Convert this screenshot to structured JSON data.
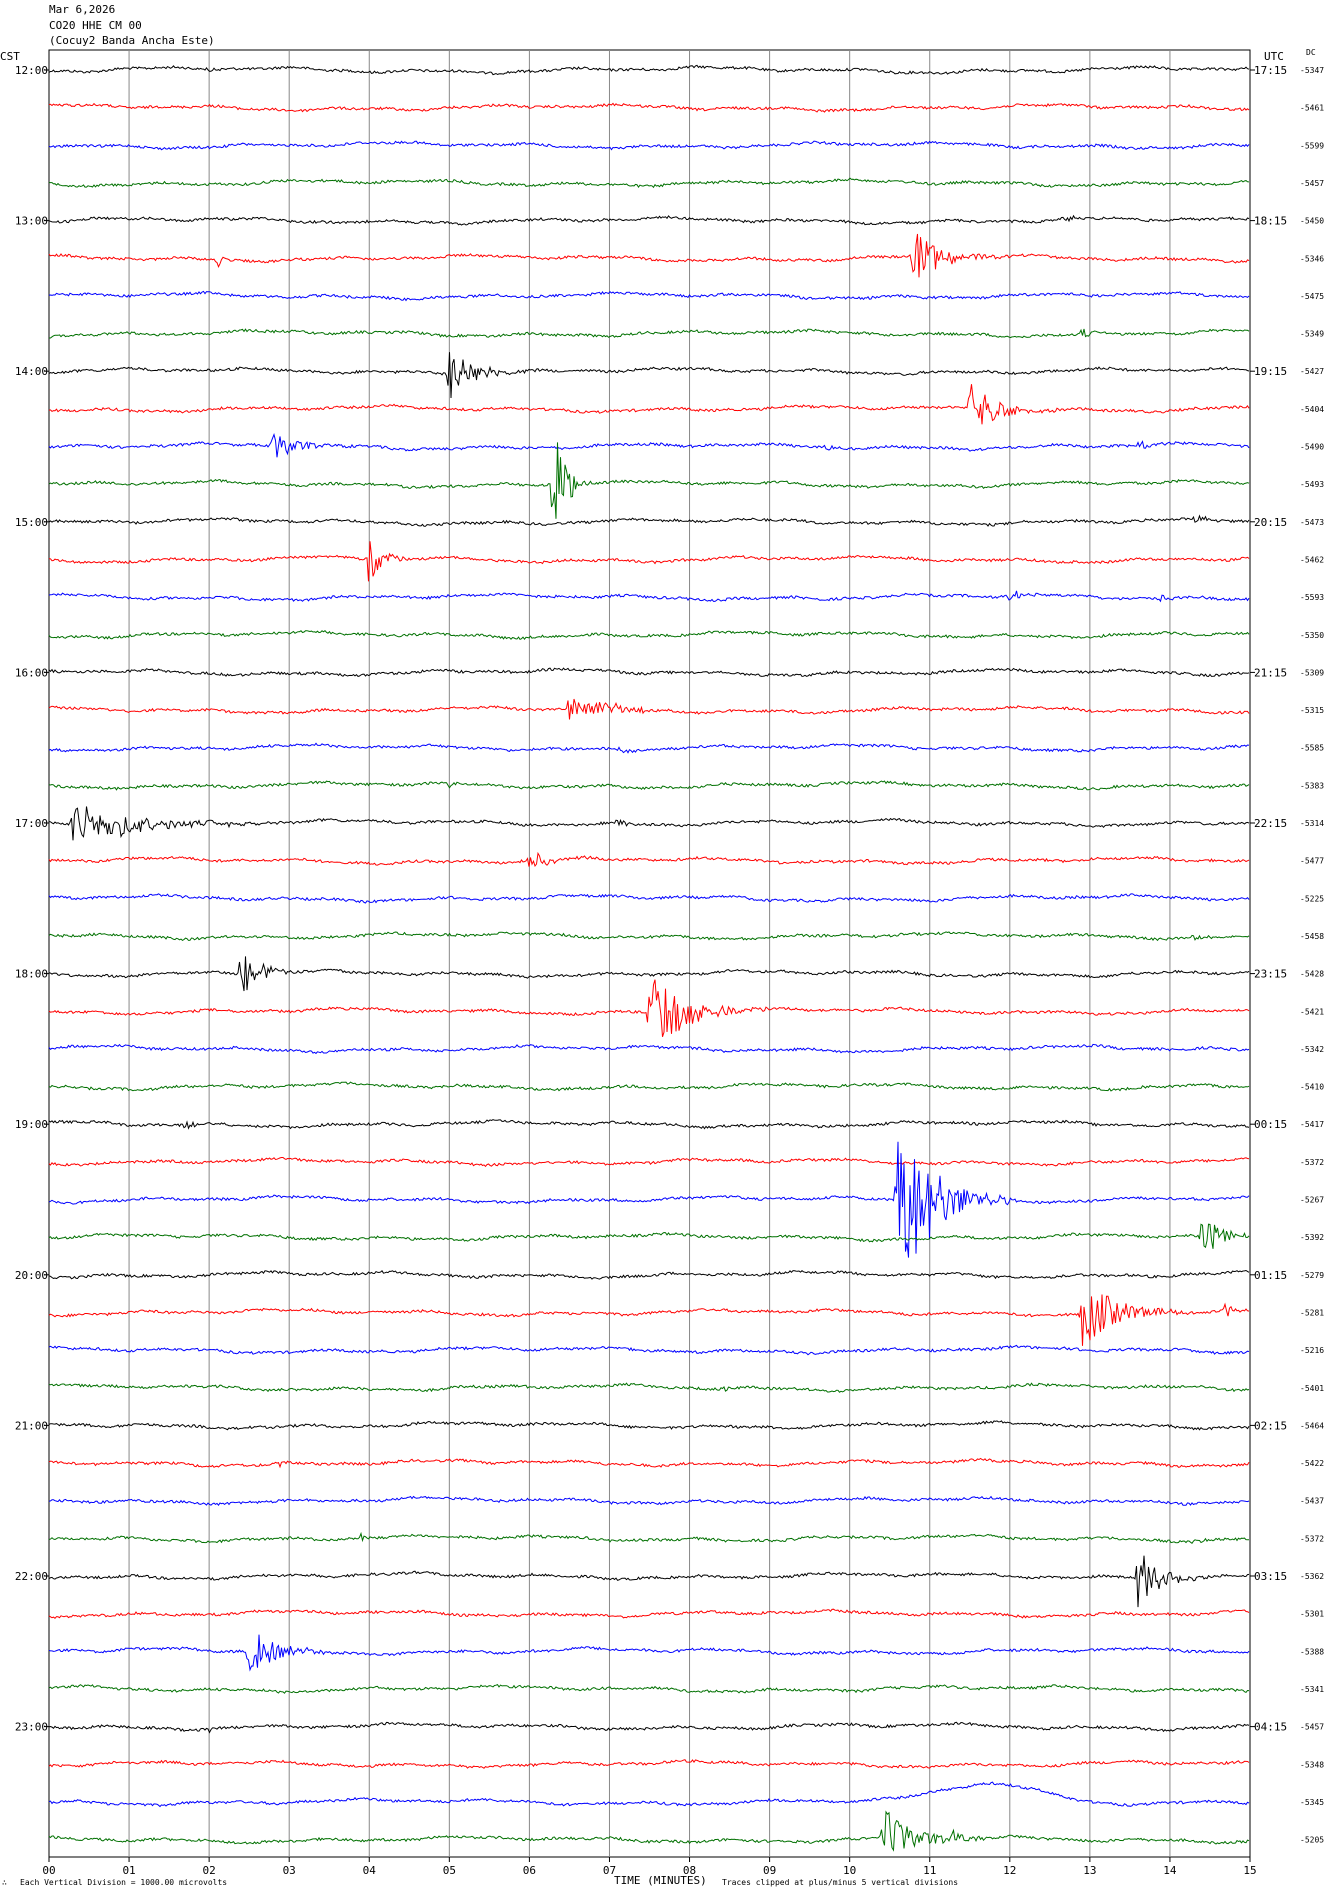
{
  "header": {
    "date": "Mar 6,2026",
    "station": "CO20 HHE CM 00",
    "site": "(Cocuy2 Banda Ancha Este)"
  },
  "left_zone": "CST",
  "right_zone": "UTC",
  "dc_heading": "DC",
  "footer": {
    "scale_note": "Each Vertical Division = 1000.00 microvolts",
    "x_title": "TIME (MINUTES)",
    "clip_note": "Traces clipped at plus/minus 5 vertical divisions",
    "logo_glyph": "∴"
  },
  "colors": {
    "cycle": [
      "#000000",
      "#ff0000",
      "#0000ff",
      "#007000"
    ],
    "grid": "#888888"
  },
  "chart_data": {
    "type": "line",
    "title": "",
    "xlabel": "TIME (MINUTES)",
    "xlim": [
      0,
      15
    ],
    "x_ticks": [
      "00",
      "01",
      "02",
      "03",
      "04",
      "05",
      "06",
      "07",
      "08",
      "09",
      "10",
      "11",
      "12",
      "13",
      "14",
      "15"
    ],
    "left_hour_labels": [
      "12:00",
      "13:00",
      "14:00",
      "15:00",
      "16:00",
      "17:00",
      "18:00",
      "19:00",
      "20:00",
      "21:00",
      "22:00",
      "23:00"
    ],
    "right_hour_labels": [
      "17:15",
      "18:15",
      "19:15",
      "20:15",
      "21:15",
      "22:15",
      "23:15",
      "00:15",
      "01:15",
      "02:15",
      "03:15",
      "04:15"
    ],
    "traces_per_hour": 4,
    "dc_offsets": [
      "-5347",
      "-5461",
      "-5599",
      "-5457",
      "-5450",
      "-5346",
      "-5475",
      "-5349",
      "-5427",
      "-5404",
      "-5490",
      "-5493",
      "-5473",
      "-5462",
      "-5593",
      "-5350",
      "-5309",
      "-5315",
      "-5585",
      "-5383",
      "-5314",
      "-5477",
      "-5225",
      "-5458",
      "-5428",
      "-5421",
      "-5342",
      "-5410",
      "-5417",
      "-5372",
      "-5267",
      "-5392",
      "-5279",
      "-5281",
      "-5216",
      "-5401",
      "-5464",
      "-5422",
      "-5437",
      "-5372",
      "-5362",
      "-5301",
      "-5388",
      "-5341",
      "-5457",
      "-5348",
      "-5345",
      "-5205"
    ],
    "events": [
      {
        "trace": 0,
        "minute": 1.9,
        "amp": 0.2,
        "dur": 0.3
      },
      {
        "trace": 4,
        "minute": 12.7,
        "amp": 0.2,
        "dur": 0.3
      },
      {
        "trace": 5,
        "minute": 2.1,
        "amp": 0.4,
        "dur": 0.3
      },
      {
        "trace": 5,
        "minute": 10.8,
        "amp": 1.5,
        "dur": 1.2
      },
      {
        "trace": 7,
        "minute": 12.9,
        "amp": 0.4,
        "dur": 0.3
      },
      {
        "trace": 8,
        "minute": 5.0,
        "amp": 1.4,
        "dur": 1.1
      },
      {
        "trace": 9,
        "minute": 11.5,
        "amp": 1.5,
        "dur": 1.2
      },
      {
        "trace": 10,
        "minute": 2.8,
        "amp": 0.9,
        "dur": 1.0
      },
      {
        "trace": 10,
        "minute": 9.7,
        "amp": 0.2,
        "dur": 0.4
      },
      {
        "trace": 10,
        "minute": 13.6,
        "amp": 0.3,
        "dur": 0.4
      },
      {
        "trace": 11,
        "minute": 6.3,
        "amp": 3.6,
        "dur": 0.5
      },
      {
        "trace": 12,
        "minute": 14.3,
        "amp": 0.3,
        "dur": 0.4
      },
      {
        "trace": 13,
        "minute": 4.0,
        "amp": 1.7,
        "dur": 0.5
      },
      {
        "trace": 14,
        "minute": 12.0,
        "amp": 0.3,
        "dur": 0.8
      },
      {
        "trace": 14,
        "minute": 13.9,
        "amp": 0.3,
        "dur": 0.3
      },
      {
        "trace": 17,
        "minute": 6.5,
        "amp": 0.9,
        "dur": 1.6
      },
      {
        "trace": 18,
        "minute": 7.1,
        "amp": 0.2,
        "dur": 0.4
      },
      {
        "trace": 19,
        "minute": 5.0,
        "amp": 0.3,
        "dur": 0.3
      },
      {
        "trace": 20,
        "minute": 0.3,
        "amp": 1.1,
        "dur": 2.8
      },
      {
        "trace": 20,
        "minute": 7.1,
        "amp": 0.3,
        "dur": 0.4
      },
      {
        "trace": 21,
        "minute": 6.0,
        "amp": 0.6,
        "dur": 0.8
      },
      {
        "trace": 23,
        "minute": 14.3,
        "amp": 0.2,
        "dur": 0.5
      },
      {
        "trace": 24,
        "minute": 2.4,
        "amp": 1.3,
        "dur": 0.9
      },
      {
        "trace": 25,
        "minute": 7.5,
        "amp": 2.5,
        "dur": 1.5
      },
      {
        "trace": 28,
        "minute": 1.7,
        "amp": 0.3,
        "dur": 0.4
      },
      {
        "trace": 30,
        "minute": 10.6,
        "amp": 5.0,
        "dur": 1.5
      },
      {
        "trace": 31,
        "minute": 14.4,
        "amp": 1.2,
        "dur": 0.8
      },
      {
        "trace": 33,
        "minute": 12.9,
        "amp": 1.8,
        "dur": 1.5
      },
      {
        "trace": 33,
        "minute": 14.7,
        "amp": 0.5,
        "dur": 0.3
      },
      {
        "trace": 35,
        "minute": 8.4,
        "amp": 0.4,
        "dur": 0.5
      },
      {
        "trace": 37,
        "minute": 2.9,
        "amp": 0.4,
        "dur": 0.3
      },
      {
        "trace": 39,
        "minute": 3.9,
        "amp": 0.3,
        "dur": 0.4
      },
      {
        "trace": 39,
        "minute": 14.3,
        "amp": 0.2,
        "dur": 0.3
      },
      {
        "trace": 40,
        "minute": 13.6,
        "amp": 1.6,
        "dur": 0.9
      },
      {
        "trace": 42,
        "minute": 2.5,
        "amp": 1.3,
        "dur": 1.2
      },
      {
        "trace": 44,
        "minute": 2.0,
        "amp": 0.2,
        "dur": 0.3
      },
      {
        "trace": 46,
        "minute": 11.8,
        "amp": 1.0,
        "dur": 1.4,
        "kind": "swell"
      },
      {
        "trace": 47,
        "minute": 10.4,
        "amp": 1.7,
        "dur": 1.3
      },
      {
        "trace": 47,
        "minute": 11.3,
        "amp": 0.5,
        "dur": 0.4
      }
    ]
  }
}
